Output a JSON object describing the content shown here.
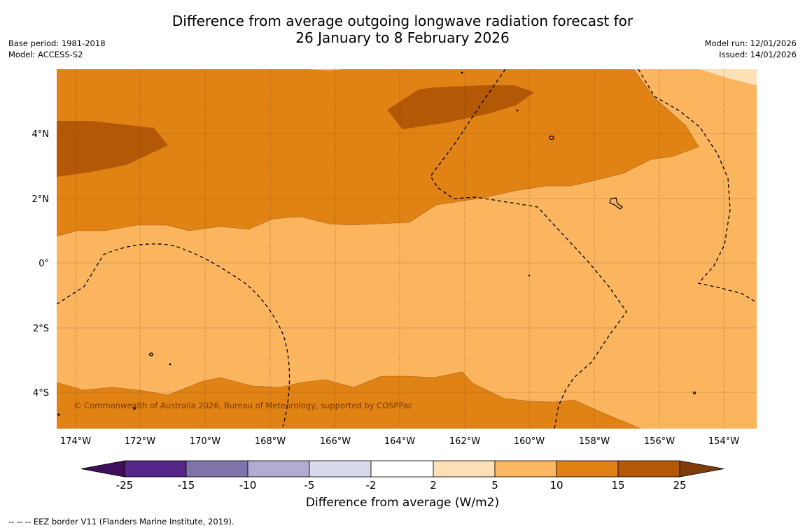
{
  "title": {
    "line1": "Difference from average outgoing longwave radiation forecast for",
    "line2": "26 January to 8 February 2026"
  },
  "metadata": {
    "base_period": "Base period: 1981-2018",
    "model": "Model: ACCESS-S2",
    "model_run": "Model run: 12/01/2026",
    "issued": "Issued: 14/01/2026"
  },
  "map": {
    "copyright": "© Commonwealth of Australia 2026, Bureau of Meteorology, supported by COSPPac",
    "lon_ticks": [
      "174°W",
      "172°W",
      "170°W",
      "168°W",
      "166°W",
      "164°W",
      "162°W",
      "160°W",
      "158°W",
      "156°W",
      "154°W"
    ],
    "lat_ticks": [
      "4°N",
      "2°N",
      "0°",
      "2°S",
      "4°S"
    ],
    "colors": {
      "c_5_10": "#fbb55f",
      "c_10_15": "#e08214",
      "c_15_25": "#b35806",
      "c_2_5": "#fee0b6"
    }
  },
  "colorbar": {
    "title": "Difference from average (W/m2)",
    "tick_labels": [
      "-25",
      "-15",
      "-10",
      "-5",
      "-2",
      "2",
      "5",
      "10",
      "15",
      "25"
    ],
    "colors": [
      "#3f0f5c",
      "#542788",
      "#8073ac",
      "#b2abd2",
      "#d8daeb",
      "#ffffff",
      "#fee0b6",
      "#fdb863",
      "#e08214",
      "#b35806",
      "#7f3b08"
    ]
  },
  "footnote": "--  --  -- EEZ border V11 (Flanders Marine Institute, 2019)."
}
